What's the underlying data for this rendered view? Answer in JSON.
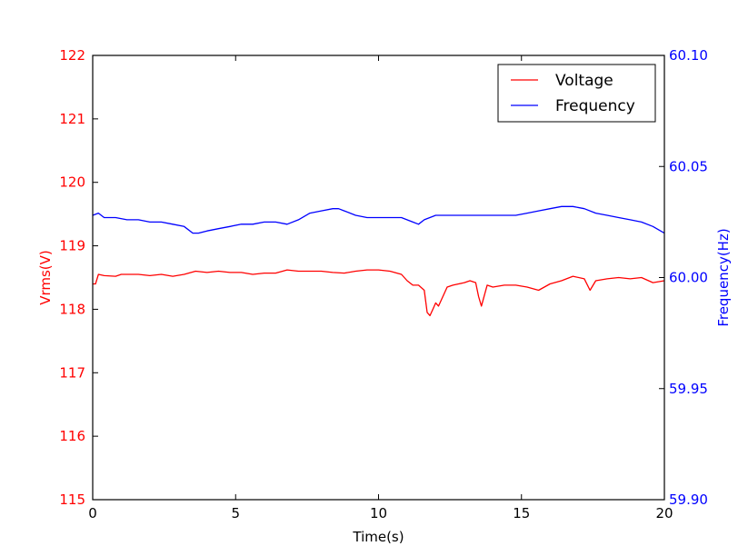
{
  "chart_data": {
    "type": "line",
    "xlabel": "Time(s)",
    "xlim": [
      0,
      20
    ],
    "x_ticks": [
      "0",
      "5",
      "10",
      "15",
      "20"
    ],
    "y_left": {
      "label": "Vrms(V)",
      "color": "#ff0000",
      "lim": [
        115,
        122
      ],
      "ticks": [
        "115",
        "116",
        "117",
        "118",
        "119",
        "120",
        "121",
        "122"
      ]
    },
    "y_right": {
      "label": "Frequency(Hz)",
      "color": "#0000ff",
      "lim": [
        59.9,
        60.1
      ],
      "ticks": [
        "59.90",
        "59.95",
        "60.00",
        "60.05",
        "60.10"
      ]
    },
    "grid": false,
    "legend_position": "top-right",
    "series": [
      {
        "name": "Voltage",
        "axis": "left",
        "color": "#ff0000",
        "x": [
          0,
          0.1,
          0.2,
          0.4,
          0.8,
          1.0,
          1.2,
          1.6,
          2.0,
          2.4,
          2.8,
          3.2,
          3.6,
          4.0,
          4.4,
          4.8,
          5.2,
          5.6,
          6.0,
          6.4,
          6.8,
          7.2,
          7.6,
          8.0,
          8.4,
          8.8,
          9.2,
          9.6,
          10.0,
          10.4,
          10.8,
          11.0,
          11.2,
          11.4,
          11.6,
          11.7,
          11.8,
          11.9,
          12.0,
          12.1,
          12.2,
          12.4,
          12.6,
          12.8,
          13.0,
          13.2,
          13.4,
          13.5,
          13.6,
          13.8,
          14.0,
          14.4,
          14.8,
          15.2,
          15.6,
          16.0,
          16.4,
          16.8,
          17.2,
          17.4,
          17.6,
          18.0,
          18.4,
          18.8,
          19.2,
          19.6,
          20.0
        ],
        "values": [
          118.4,
          118.4,
          118.55,
          118.53,
          118.52,
          118.55,
          118.55,
          118.55,
          118.53,
          118.55,
          118.52,
          118.55,
          118.6,
          118.58,
          118.6,
          118.58,
          118.58,
          118.55,
          118.57,
          118.57,
          118.62,
          118.6,
          118.6,
          118.6,
          118.58,
          118.57,
          118.6,
          118.62,
          118.62,
          118.6,
          118.55,
          118.45,
          118.38,
          118.38,
          118.3,
          117.95,
          117.9,
          118.0,
          118.1,
          118.05,
          118.15,
          118.35,
          118.38,
          118.4,
          118.42,
          118.45,
          118.42,
          118.2,
          118.05,
          118.38,
          118.35,
          118.38,
          118.38,
          118.35,
          118.3,
          118.4,
          118.45,
          118.52,
          118.48,
          118.3,
          118.45,
          118.48,
          118.5,
          118.48,
          118.5,
          118.42,
          118.45
        ]
      },
      {
        "name": "Frequency",
        "axis": "right",
        "color": "#0000ff",
        "x": [
          0,
          0.2,
          0.4,
          0.8,
          1.2,
          1.6,
          2.0,
          2.4,
          2.8,
          3.2,
          3.5,
          3.7,
          4.0,
          4.4,
          4.8,
          5.2,
          5.6,
          6.0,
          6.4,
          6.8,
          7.2,
          7.6,
          8.0,
          8.4,
          8.6,
          8.8,
          9.2,
          9.6,
          10.0,
          10.4,
          10.8,
          11.2,
          11.4,
          11.6,
          12.0,
          12.4,
          12.8,
          13.2,
          13.6,
          14.0,
          14.4,
          14.8,
          15.2,
          15.6,
          16.0,
          16.4,
          16.8,
          17.2,
          17.6,
          18.0,
          18.4,
          18.8,
          19.2,
          19.6,
          20.0
        ],
        "values": [
          60.028,
          60.029,
          60.027,
          60.027,
          60.026,
          60.026,
          60.025,
          60.025,
          60.024,
          60.023,
          60.02,
          60.02,
          60.021,
          60.022,
          60.023,
          60.024,
          60.024,
          60.025,
          60.025,
          60.024,
          60.026,
          60.029,
          60.03,
          60.031,
          60.031,
          60.03,
          60.028,
          60.027,
          60.027,
          60.027,
          60.027,
          60.025,
          60.024,
          60.026,
          60.028,
          60.028,
          60.028,
          60.028,
          60.028,
          60.028,
          60.028,
          60.028,
          60.029,
          60.03,
          60.031,
          60.032,
          60.032,
          60.031,
          60.029,
          60.028,
          60.027,
          60.026,
          60.025,
          60.023,
          60.02
        ]
      }
    ]
  }
}
